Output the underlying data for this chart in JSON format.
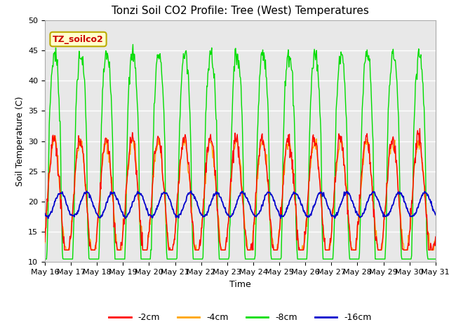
{
  "title": "Tonzi Soil CO2 Profile: Tree (West) Temperatures",
  "xlabel": "Time",
  "ylabel": "Soil Temperature (C)",
  "ylim": [
    10,
    50
  ],
  "xlim": [
    16,
    31
  ],
  "x_tick_labels": [
    "May 16",
    "May 17",
    "May 18",
    "May 19",
    "May 20",
    "May 21",
    "May 22",
    "May 23",
    "May 24",
    "May 25",
    "May 26",
    "May 27",
    "May 28",
    "May 29",
    "May 30",
    "May 31"
  ],
  "legend_labels": [
    "-2cm",
    "-4cm",
    "-8cm",
    "-16cm"
  ],
  "line_colors": [
    "#ff0000",
    "#ffa500",
    "#00dd00",
    "#0000cc"
  ],
  "annotation_text": "TZ_soilco2",
  "annotation_bg": "#ffffcc",
  "annotation_border": "#bbaa00",
  "plot_bg": "#e8e8e8",
  "grid_color": "#ffffff",
  "fig_bg": "#ffffff",
  "title_fontsize": 11,
  "label_fontsize": 9,
  "tick_fontsize": 8
}
